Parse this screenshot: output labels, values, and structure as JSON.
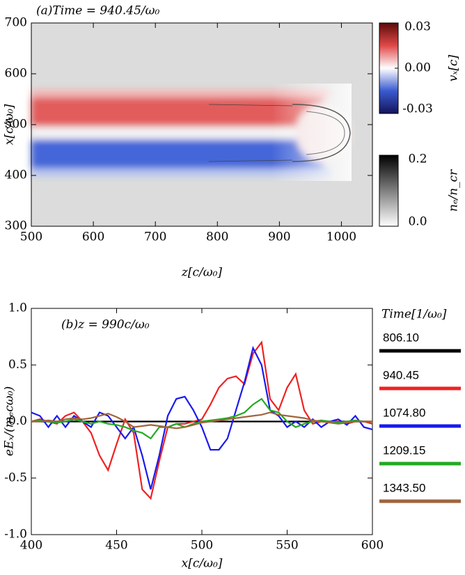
{
  "chart_data": [
    {
      "type": "heatmap",
      "title": "(a)Time = 940.45/ω₀",
      "xlabel": "z[c/ω₀]",
      "ylabel": "x[c/ω₀]",
      "xlim": [
        500,
        1050
      ],
      "xticks": [
        500,
        600,
        700,
        800,
        900,
        1000
      ],
      "ylim": [
        300,
        700
      ],
      "yticks": [
        300,
        400,
        500,
        600,
        700
      ],
      "colorbars": [
        {
          "label": "vₓ[c]",
          "lim": [
            -0.03,
            0.03
          ],
          "ticks": [
            0.03,
            {
              "value": 0,
              "label": "0.00"
            },
            -0.03
          ],
          "colors": [
            "#14145a",
            "#3a5bd0",
            "#ffffff",
            "#e04848",
            "#5c0a0a"
          ]
        },
        {
          "label": "nₑ/n_cr",
          "lim": [
            0,
            0.2
          ],
          "ticks": [
            0.2,
            {
              "value": 0,
              "label": "0.0"
            }
          ],
          "colors": [
            "#ffffff",
            "#000000"
          ]
        }
      ]
    },
    {
      "type": "line",
      "annotation": "(b)z = 990c/ω₀",
      "xlabel": "x[c/ω₀]",
      "ylabel": "eEₓ/(mₑcω₀)",
      "legend_title": "Time[1/ω₀]",
      "xlim": [
        400,
        600
      ],
      "xticks": [
        400,
        450,
        500,
        550,
        600
      ],
      "ylim": [
        -1,
        1
      ],
      "yticks": [
        {
          "value": 1,
          "label": "1.0"
        },
        0.5,
        {
          "value": 0,
          "label": "0.0"
        },
        -0.5,
        {
          "value": -1,
          "label": "-1.0"
        }
      ],
      "x": [
        400,
        405,
        410,
        415,
        420,
        425,
        430,
        435,
        440,
        445,
        450,
        455,
        460,
        465,
        470,
        475,
        480,
        485,
        490,
        495,
        500,
        505,
        510,
        515,
        520,
        525,
        530,
        535,
        540,
        545,
        550,
        555,
        560,
        565,
        570,
        575,
        580,
        585,
        590,
        595,
        600
      ],
      "series": [
        {
          "name": "806.10",
          "color": "#000000",
          "values": [
            0,
            0,
            0,
            0,
            0,
            0,
            0,
            0,
            0,
            0,
            0,
            0,
            0,
            0,
            0,
            0,
            0,
            0,
            0,
            0,
            0,
            0,
            0,
            0,
            0,
            0,
            0,
            0,
            0,
            0,
            0,
            0,
            0,
            0,
            0,
            0,
            0,
            0,
            0,
            0,
            0
          ]
        },
        {
          "name": "940.45",
          "color": "#ee2222",
          "values": [
            0,
            0.02,
            0,
            -0.02,
            0.05,
            0.08,
            0,
            -0.1,
            -0.3,
            -0.43,
            -0.2,
            0.02,
            -0.1,
            -0.6,
            -0.68,
            -0.35,
            -0.05,
            -0.02,
            -0.02,
            0,
            0.02,
            0.15,
            0.3,
            0.38,
            0.4,
            0.33,
            0.6,
            0.7,
            0.2,
            0.1,
            0.3,
            0.42,
            0.1,
            -0.02,
            0,
            0,
            0,
            -0.02,
            0,
            0,
            -0.02
          ]
        },
        {
          "name": "1074.80",
          "color": "#1a1aee",
          "values": [
            0.08,
            0.05,
            -0.05,
            0.05,
            -0.05,
            0.05,
            0,
            -0.05,
            0.08,
            0.05,
            -0.05,
            -0.15,
            -0.05,
            -0.3,
            -0.6,
            -0.3,
            0.05,
            0.2,
            0.22,
            0.1,
            -0.05,
            -0.25,
            -0.25,
            -0.15,
            0.1,
            0.35,
            0.65,
            0.5,
            0.1,
            0.05,
            -0.05,
            0,
            -0.05,
            0.02,
            -0.05,
            0,
            0.02,
            -0.03,
            0.05,
            -0.05,
            -0.07
          ]
        },
        {
          "name": "1209.15",
          "color": "#22aa22",
          "values": [
            0,
            0.01,
            0,
            -0.01,
            0,
            0.02,
            0,
            -0.02,
            0,
            -0.02,
            -0.03,
            -0.05,
            -0.08,
            -0.1,
            -0.15,
            -0.05,
            -0.05,
            -0.02,
            -0.05,
            -0.02,
            0,
            0.01,
            0.02,
            0.03,
            0.05,
            0.08,
            0.15,
            0.2,
            0.1,
            0.08,
            0,
            -0.05,
            -0.02,
            0,
            0.01,
            0,
            -0.01,
            0,
            0.01,
            0,
            0
          ]
        },
        {
          "name": "1343.50",
          "color": "#a0643c",
          "values": [
            0,
            0,
            0.01,
            0,
            0.02,
            0.03,
            0.02,
            0.03,
            0.05,
            0.07,
            0.04,
            0,
            -0.05,
            -0.04,
            -0.03,
            -0.04,
            -0.05,
            -0.06,
            -0.05,
            -0.03,
            -0.01,
            0,
            0.01,
            0.02,
            0.03,
            0.04,
            0.05,
            0.06,
            0.08,
            0.06,
            0.05,
            0.04,
            0.03,
            0.01,
            0,
            -0.01,
            -0.02,
            -0.01,
            0,
            0,
            0
          ]
        }
      ]
    }
  ]
}
